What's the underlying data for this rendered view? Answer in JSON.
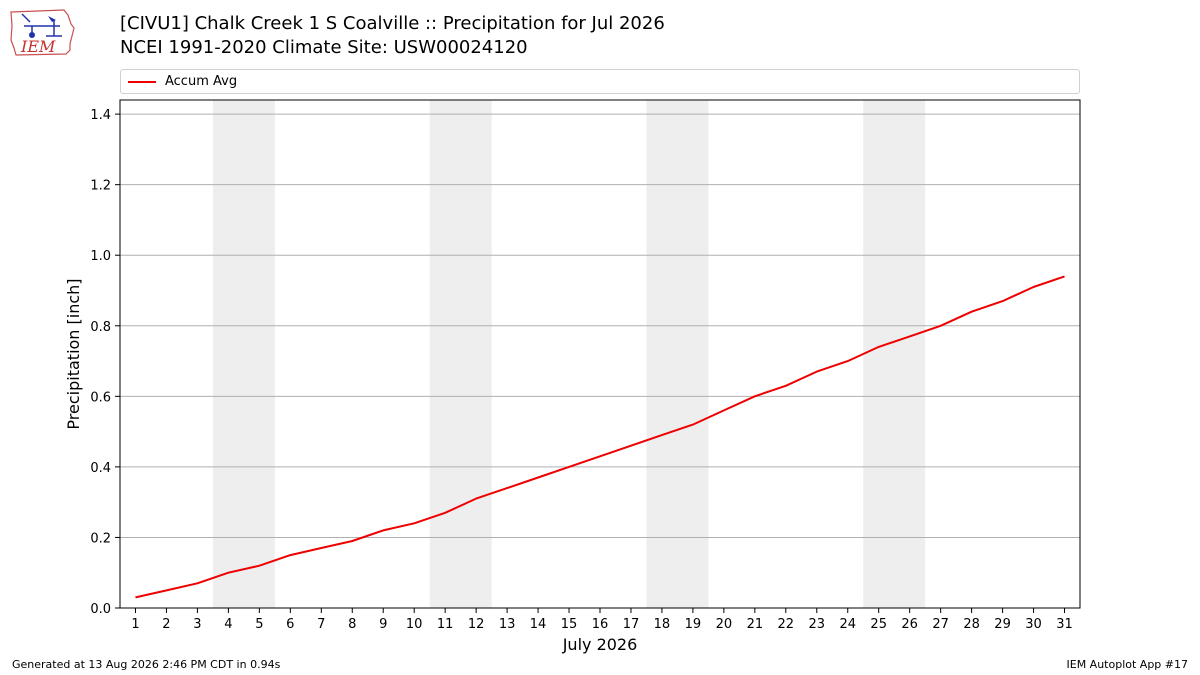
{
  "header": {
    "title_line1": "[CIVU1] Chalk Creek 1 S Coalville :: Precipitation for Jul 2026",
    "title_line2": "NCEI 1991-2020 Climate Site: USW00024120",
    "logo_text": "IEM"
  },
  "footer": {
    "generated": "Generated at 13 Aug 2026 2:46 PM CDT in 0.94s",
    "app": "IEM Autoplot App #17"
  },
  "colors": {
    "series": "#ee0000",
    "weekend_band": "#eeeeee",
    "grid": "#b0b0b0"
  },
  "chart_data": {
    "type": "line",
    "title": "[CIVU1] Chalk Creek 1 S Coalville :: Precipitation for Jul 2026",
    "subtitle": "NCEI 1991-2020 Climate Site: USW00024120",
    "xlabel": "July 2026",
    "ylabel": "Precipitation [inch]",
    "x": [
      1,
      2,
      3,
      4,
      5,
      6,
      7,
      8,
      9,
      10,
      11,
      12,
      13,
      14,
      15,
      16,
      17,
      18,
      19,
      20,
      21,
      22,
      23,
      24,
      25,
      26,
      27,
      28,
      29,
      30,
      31
    ],
    "xlim": [
      0.5,
      31.5
    ],
    "ylim": [
      0,
      1.44
    ],
    "yticks": [
      0.0,
      0.2,
      0.4,
      0.6,
      0.8,
      1.0,
      1.2,
      1.4
    ],
    "ytick_labels": [
      "0.0",
      "0.2",
      "0.4",
      "0.6",
      "0.8",
      "1.0",
      "1.2",
      "1.4"
    ],
    "grid": "horizontal",
    "legend_position": "top",
    "shaded_days": [
      [
        4,
        5
      ],
      [
        11,
        12
      ],
      [
        18,
        19
      ],
      [
        25,
        26
      ]
    ],
    "series": [
      {
        "name": "Accum Avg",
        "color": "#ee0000",
        "values": [
          0.03,
          0.05,
          0.07,
          0.1,
          0.12,
          0.15,
          0.17,
          0.19,
          0.22,
          0.24,
          0.27,
          0.31,
          0.34,
          0.37,
          0.4,
          0.43,
          0.46,
          0.49,
          0.52,
          0.56,
          0.6,
          0.63,
          0.67,
          0.7,
          0.74,
          0.77,
          0.8,
          0.84,
          0.87,
          0.91,
          0.94
        ]
      }
    ]
  }
}
